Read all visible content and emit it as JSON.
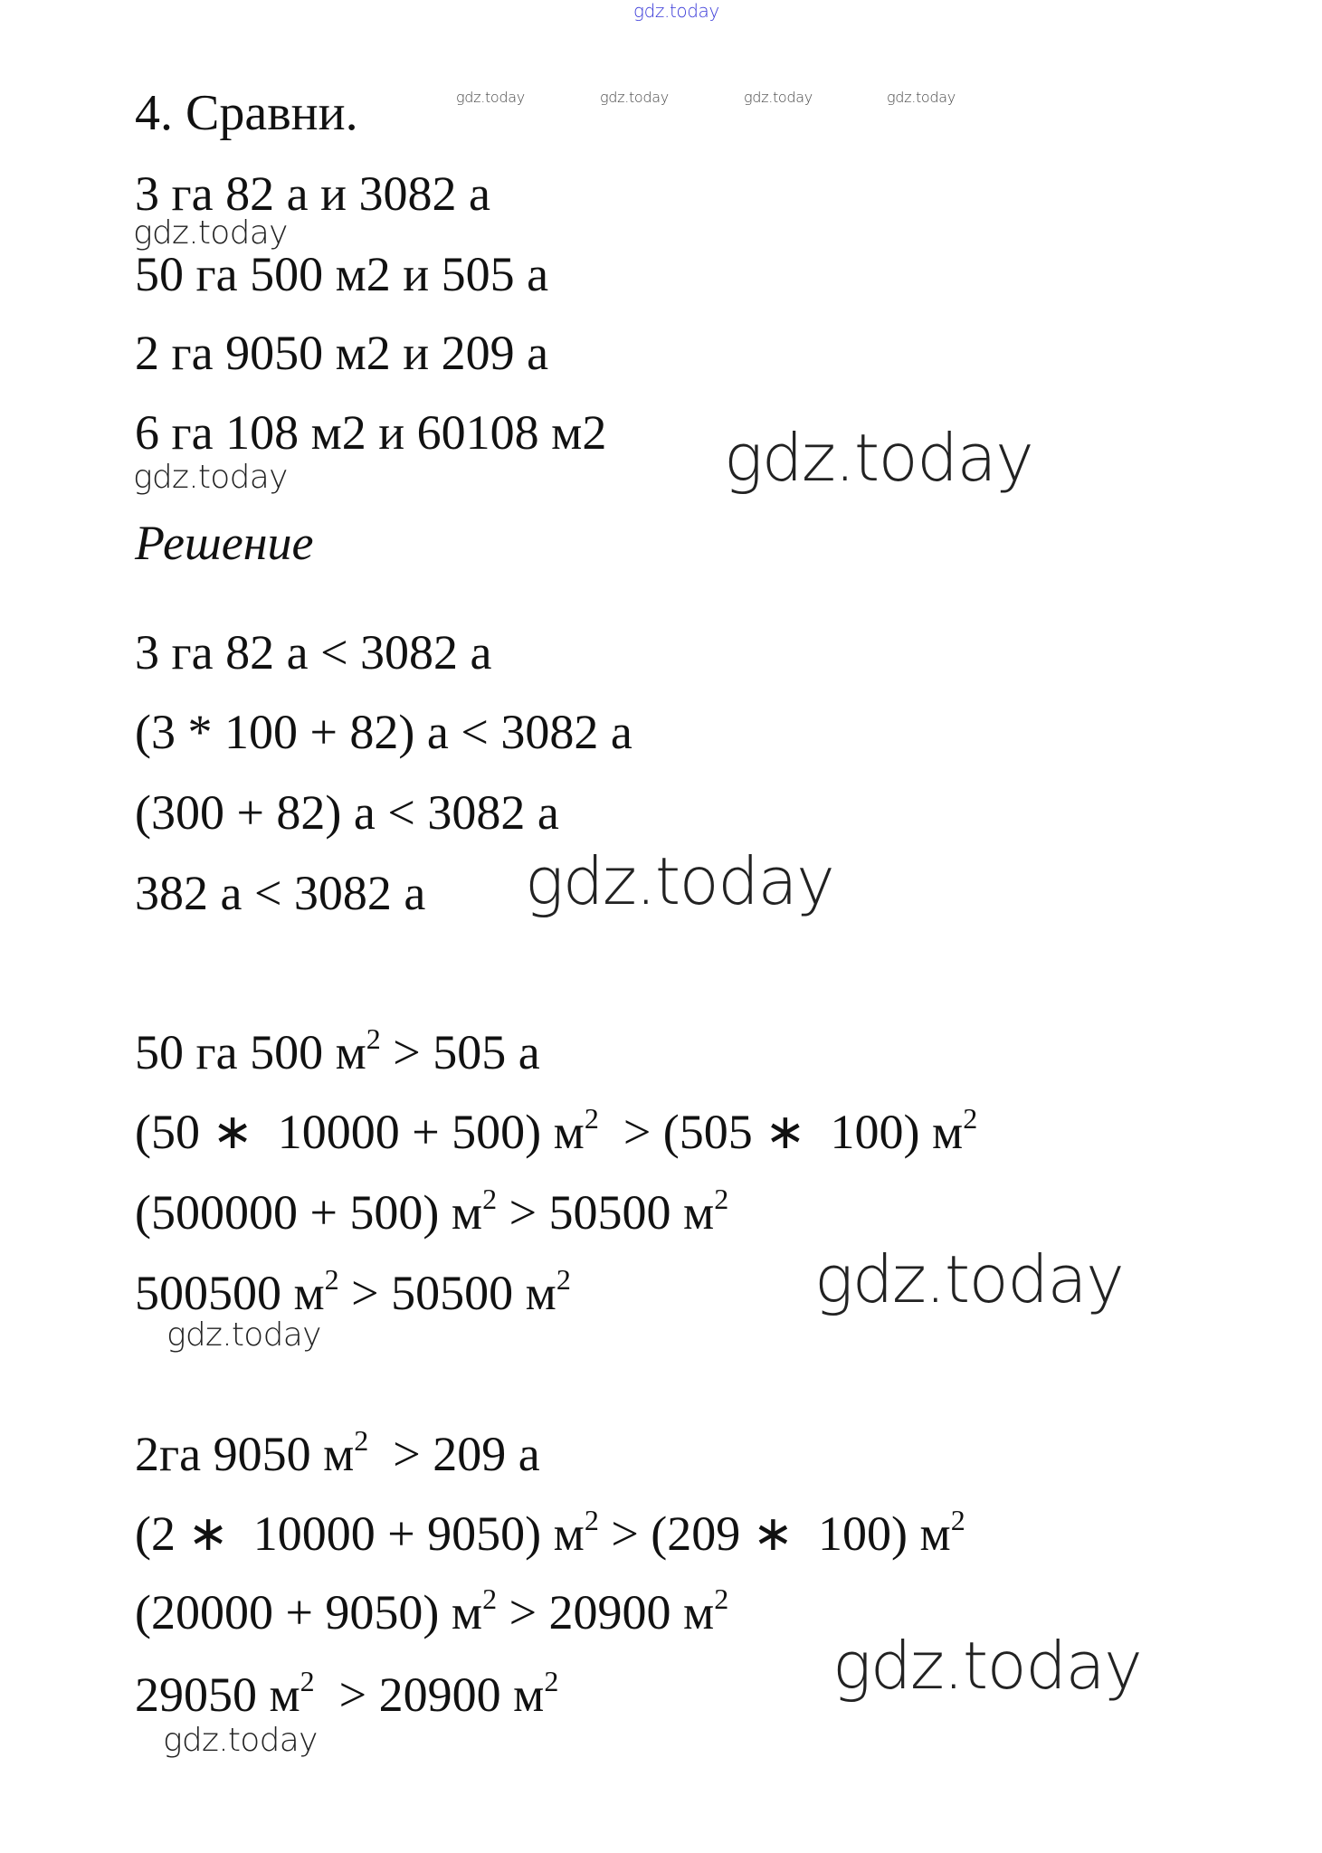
{
  "watermark": "gdz.today",
  "colors": {
    "text": "#111111",
    "top_watermark": "#3a3ad8"
  },
  "problem": {
    "title": "4. Сравни.",
    "lines": [
      [
        {
          "t": "3 га 82 а и 3082 а"
        }
      ],
      [
        {
          "t": "50 га 500 м2 и 505 а"
        }
      ],
      [
        {
          "t": "2 га 9050 м2 и 209 а"
        }
      ],
      [
        {
          "t": "6 га 108 м2 и 60108 м2"
        }
      ]
    ]
  },
  "solution": {
    "heading": "Решение",
    "lines": [
      [
        {
          "t": "3 га 82 а < 3082 а"
        }
      ],
      [
        {
          "t": "(3 * 100 + 82) а < 3082 а"
        }
      ],
      [
        {
          "t": "(300 + 82) а < 3082 а"
        }
      ],
      [
        {
          "t": "382 а < 3082 а"
        }
      ],
      [
        {
          "t": "50 га 500 м",
          "sup": "2"
        },
        {
          "t": " > 505 а"
        }
      ],
      [
        {
          "t": "(50 ∗  10000 + 500) м",
          "sup": "2"
        },
        {
          "t": "  > (505 ∗  100) м",
          "sup": "2"
        }
      ],
      [
        {
          "t": "(500000 + 500) м",
          "sup": "2"
        },
        {
          "t": " > 50500 м",
          "sup": "2"
        }
      ],
      [
        {
          "t": "500500 м",
          "sup": "2"
        },
        {
          "t": " > 50500 м",
          "sup": "2"
        }
      ],
      [
        {
          "t": "2га 9050 м",
          "sup": "2"
        },
        {
          "t": "  > 209 а"
        }
      ],
      [
        {
          "t": "(2 ∗  10000 + 9050) м",
          "sup": "2"
        },
        {
          "t": " > (209 ∗  100) м",
          "sup": "2"
        }
      ],
      [
        {
          "t": "(20000 + 9050) м",
          "sup": "2"
        },
        {
          "t": " > 20900 м",
          "sup": "2"
        }
      ],
      [
        {
          "t": "29050 м",
          "sup": "2"
        },
        {
          "t": "  > 20900 м",
          "sup": "2"
        }
      ]
    ]
  }
}
